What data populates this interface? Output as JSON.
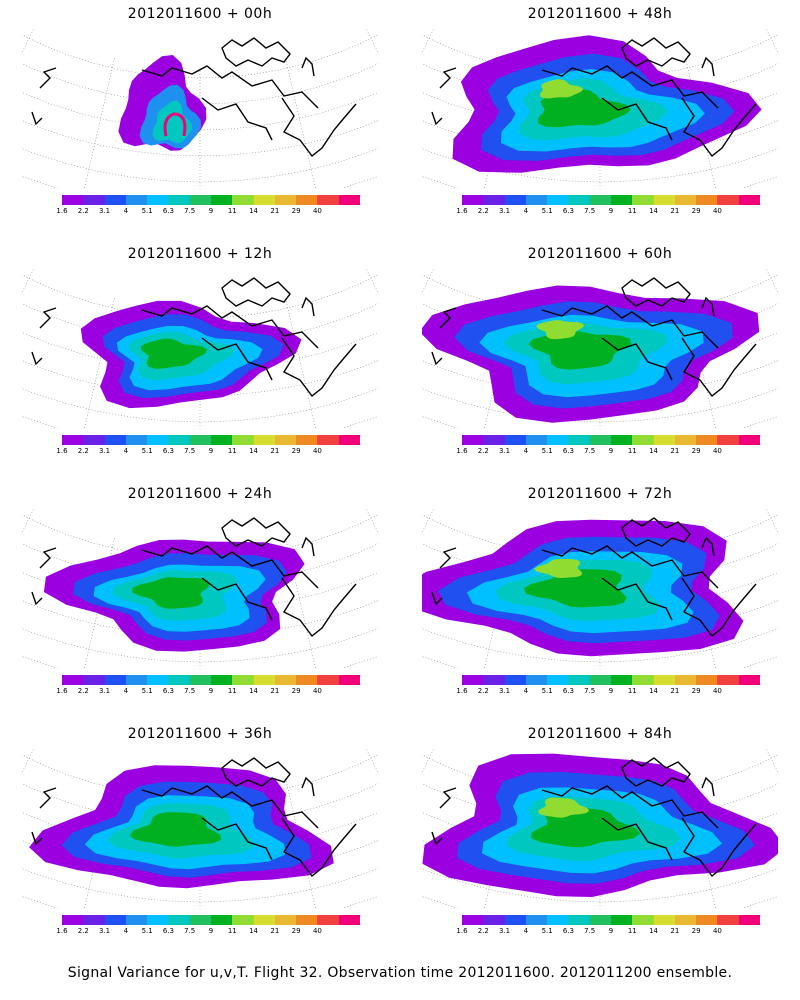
{
  "panels": [
    {
      "title": "2012011600 + 00h",
      "lead": "00h",
      "spread": 0.25
    },
    {
      "title": "2012011600 + 48h",
      "lead": "48h",
      "spread": 0.85
    },
    {
      "title": "2012011600 + 12h",
      "lead": "12h",
      "spread": 0.45
    },
    {
      "title": "2012011600 + 60h",
      "lead": "60h",
      "spread": 0.9
    },
    {
      "title": "2012011600 + 24h",
      "lead": "24h",
      "spread": 0.6
    },
    {
      "title": "2012011600 + 72h",
      "lead": "72h",
      "spread": 0.95
    },
    {
      "title": "2012011600 + 36h",
      "lead": "36h",
      "spread": 0.75
    },
    {
      "title": "2012011600 + 84h",
      "lead": "84h",
      "spread": 1.0
    }
  ],
  "colorbar": {
    "labels": [
      "1.6",
      "2.2",
      "3.1",
      "4",
      "5.1",
      "6.3",
      "7.5",
      "9",
      "11",
      "14",
      "21",
      "29",
      "40"
    ],
    "colors": [
      "#9a00e0",
      "#6a20e6",
      "#2050f0",
      "#1e90f0",
      "#00c0ff",
      "#00c8c0",
      "#20c060",
      "#00b020",
      "#90dc30",
      "#d8dc30",
      "#e8b830",
      "#f08820",
      "#f04040",
      "#f0007a"
    ]
  },
  "footer": "Signal Variance for u,v,T. Flight 32. Observation time 2012011600. 2012011200 ensemble."
}
